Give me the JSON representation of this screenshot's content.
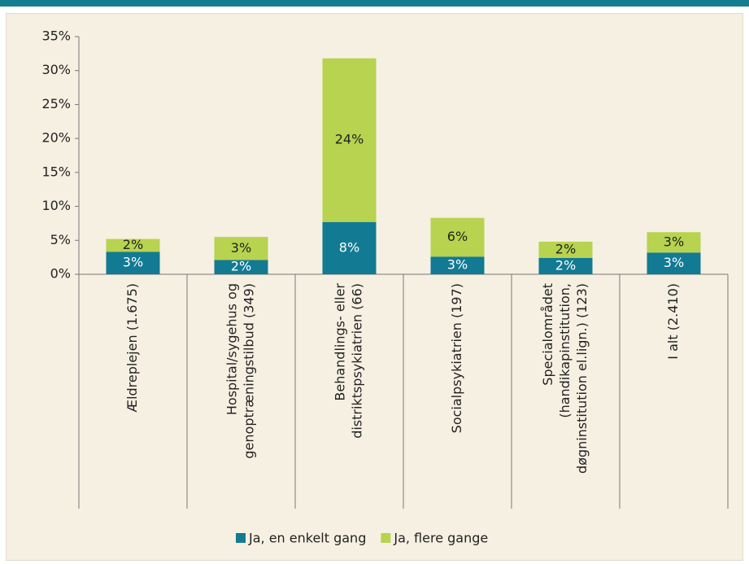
{
  "chart_data": {
    "type": "stacked_bar",
    "categories": [
      [
        "Ældreplejen (1.675)"
      ],
      [
        "Hospital/sygehus og",
        "genoptræningstilbud (349)"
      ],
      [
        "Behandlings- eller",
        "distriktspsykiatrien (66)"
      ],
      [
        "Socialpsykiatrien (197)"
      ],
      [
        "Specialområdet",
        "(handikapinstitution,",
        "døgninstitution el.lign.) (123)"
      ],
      [
        "I alt (2.410)"
      ]
    ],
    "series": [
      {
        "name": "Ja, en enkelt gang",
        "color": "#127a93",
        "values": [
          3.3,
          2.1,
          7.7,
          2.6,
          2.4,
          3.2
        ],
        "value_labels": [
          "3%",
          "2%",
          "8%",
          "3%",
          "2%",
          "3%"
        ]
      },
      {
        "name": "Ja, flere gange",
        "color": "#b7d34f",
        "values": [
          1.9,
          3.4,
          24.1,
          5.7,
          2.4,
          3.0
        ],
        "value_labels": [
          "2%",
          "3%",
          "24%",
          "6%",
          "2%",
          "3%"
        ]
      }
    ],
    "ylim": [
      0,
      35
    ],
    "yticks": [
      {
        "value": 0,
        "label": "0%"
      },
      {
        "value": 5,
        "label": "5%"
      },
      {
        "value": 10,
        "label": "10%"
      },
      {
        "value": 15,
        "label": "15%"
      },
      {
        "value": 20,
        "label": "20%"
      },
      {
        "value": 25,
        "label": "25%"
      },
      {
        "value": 30,
        "label": "30%"
      },
      {
        "value": 35,
        "label": "35%"
      }
    ],
    "legend": "bottom"
  }
}
